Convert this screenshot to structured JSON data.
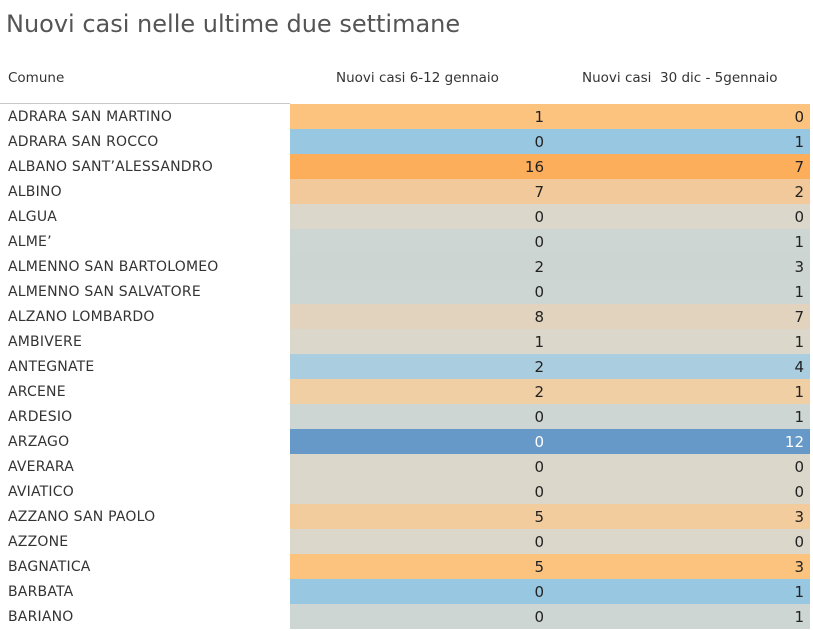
{
  "title": "Nuovi casi nelle ultime due settimane",
  "colors": {
    "background": "#ffffff",
    "text": "#333333",
    "scale_low_blue": "#6699c8",
    "scale_neutral": "#d9d5c9",
    "scale_high_orange": "#fdae5b"
  },
  "chart_data": {
    "type": "table",
    "title": "Nuovi casi nelle ultime due settimane",
    "columns": [
      "Comune",
      "Nuovi casi 6-12 gennaio",
      "Nuovi casi  30 dic - 5gennaio"
    ],
    "rows": [
      {
        "comune": "ADRARA SAN MARTINO",
        "col1": "1",
        "col2": "0",
        "color": "#fcc37f"
      },
      {
        "comune": "ADRARA SAN ROCCO",
        "col1": "0",
        "col2": "1",
        "color": "#98c7e2"
      },
      {
        "comune": "ALBANO SANT’ALESSANDRO",
        "col1": "16",
        "col2": "7",
        "color": "#fdae5b"
      },
      {
        "comune": "ALBINO",
        "col1": "7",
        "col2": "2",
        "color": "#f2c99a"
      },
      {
        "comune": "ALGUA",
        "col1": "0",
        "col2": "0",
        "color": "#dbd7ca"
      },
      {
        "comune": "ALME’",
        "col1": "0",
        "col2": "1",
        "color": "#ced6d3"
      },
      {
        "comune": "ALMENNO SAN BARTOLOMEO",
        "col1": "2",
        "col2": "3",
        "color": "#cdd5d2"
      },
      {
        "comune": "ALMENNO SAN SALVATORE",
        "col1": "0",
        "col2": "1",
        "color": "#ced6d3"
      },
      {
        "comune": "ALZANO LOMBARDO",
        "col1": "8",
        "col2": "7",
        "color": "#e1d3bd"
      },
      {
        "comune": "AMBIVERE",
        "col1": "1",
        "col2": "1",
        "color": "#dbd7ca"
      },
      {
        "comune": "ANTEGNATE",
        "col1": "2",
        "col2": "4",
        "color": "#abcde0"
      },
      {
        "comune": "ARCENE",
        "col1": "2",
        "col2": "1",
        "color": "#f0cfa5"
      },
      {
        "comune": "ARDESIO",
        "col1": "0",
        "col2": "1",
        "color": "#ced6d3"
      },
      {
        "comune": "ARZAGO",
        "col1": "0",
        "col2": "12",
        "color": "#6699c8",
        "light": true
      },
      {
        "comune": "AVERARA",
        "col1": "0",
        "col2": "0",
        "color": "#dbd7ca"
      },
      {
        "comune": "AVIATICO",
        "col1": "0",
        "col2": "0",
        "color": "#dbd7ca"
      },
      {
        "comune": "AZZANO SAN PAOLO",
        "col1": "5",
        "col2": "3",
        "color": "#f3cc9d"
      },
      {
        "comune": "AZZONE",
        "col1": "0",
        "col2": "0",
        "color": "#dbd7ca"
      },
      {
        "comune": "BAGNATICA",
        "col1": "5",
        "col2": "3",
        "color": "#fcc37f"
      },
      {
        "comune": "BARBATA",
        "col1": "0",
        "col2": "1",
        "color": "#98c7e2"
      },
      {
        "comune": "BARIANO",
        "col1": "0",
        "col2": "1",
        "color": "#ced6d3"
      }
    ]
  }
}
